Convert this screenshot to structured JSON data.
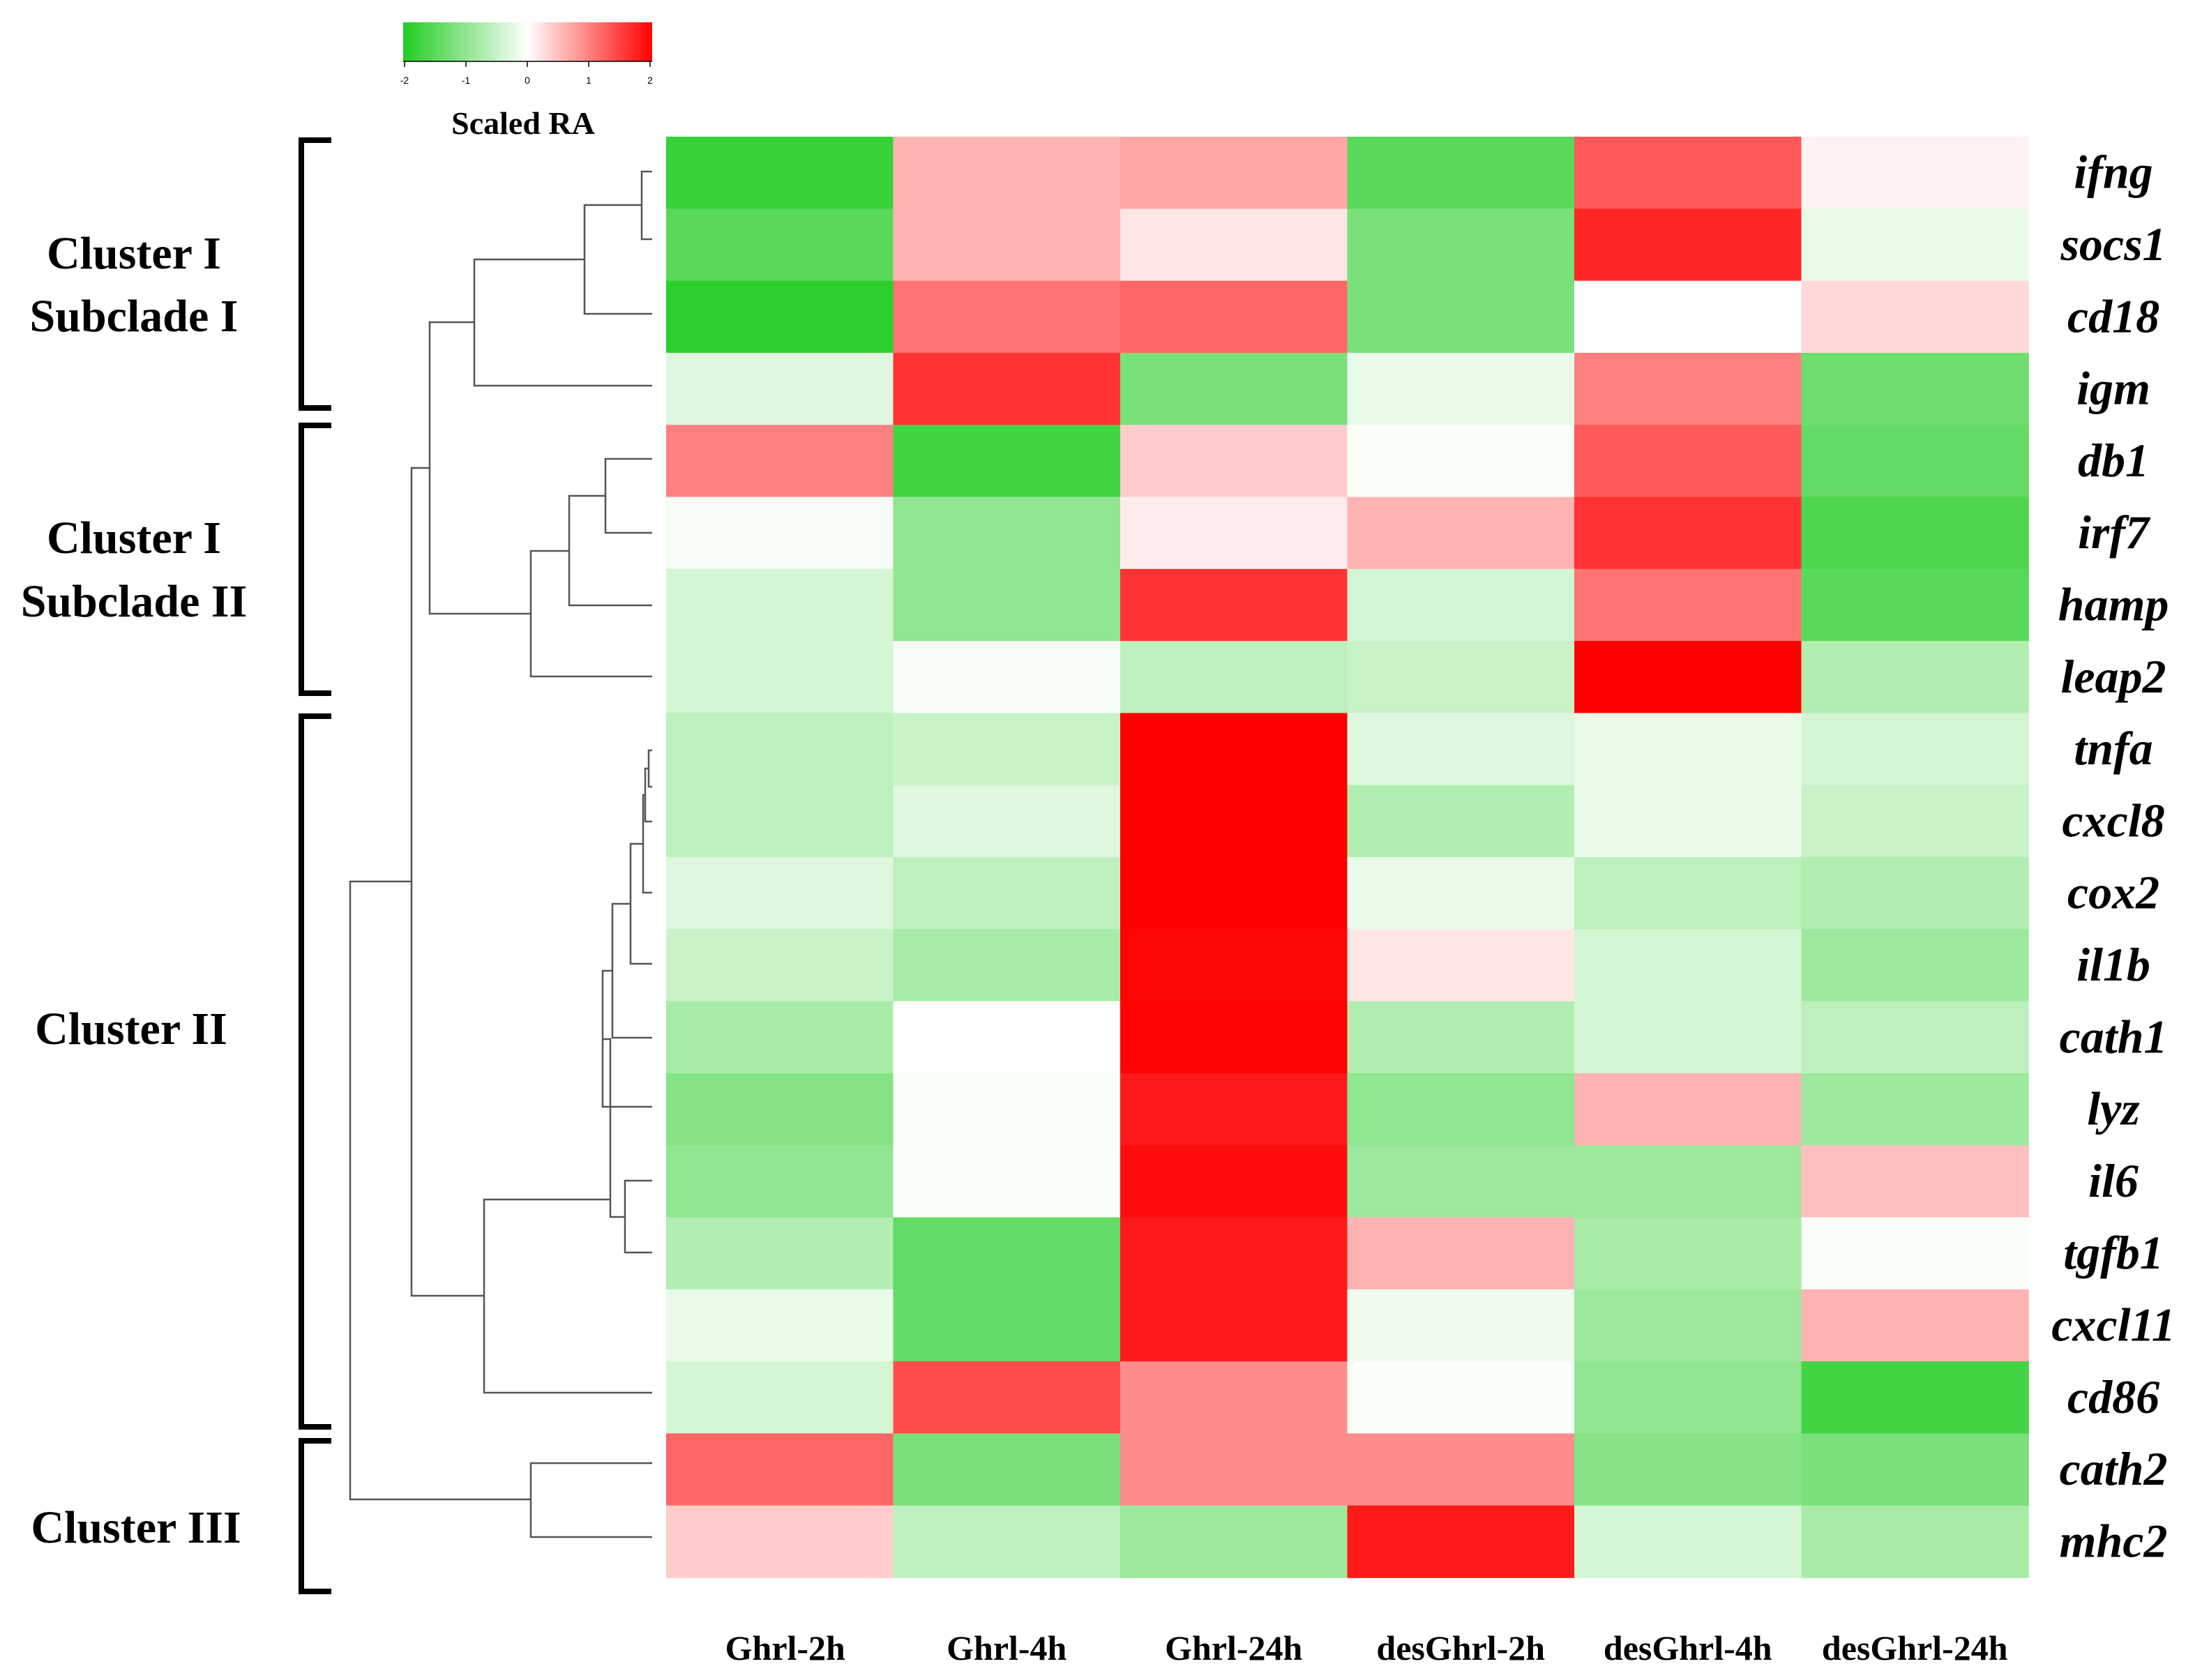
{
  "chart_data": {
    "type": "heatmap",
    "title": "",
    "columns": [
      "Ghrl-2h",
      "Ghrl-4h",
      "Ghrl-24h",
      "desGhrl-2h",
      "desGhrl-4h",
      "desGhrl-24h"
    ],
    "rows": [
      "ifng",
      "socs1",
      "cd18",
      "igm",
      "db1",
      "irf7",
      "hamp",
      "leap2",
      "tnfa",
      "cxcl8",
      "cox2",
      "il1b",
      "cath1",
      "lyz",
      "il6",
      "tgfb1",
      "cxcl11",
      "cd86",
      "cath2",
      "mhc2"
    ],
    "values": [
      [
        -1.8,
        0.6,
        0.7,
        -1.5,
        1.3,
        0.1
      ],
      [
        -1.5,
        0.6,
        0.2,
        -1.2,
        1.7,
        -0.2
      ],
      [
        -1.9,
        1.1,
        1.2,
        -1.2,
        0.0,
        0.3
      ],
      [
        -0.3,
        1.6,
        -1.2,
        -0.2,
        1.0,
        -1.3
      ],
      [
        1.0,
        -1.7,
        0.4,
        -0.05,
        1.3,
        -1.4
      ],
      [
        -0.1,
        -1.0,
        0.15,
        0.6,
        1.6,
        -1.6
      ],
      [
        -0.4,
        -1.0,
        1.6,
        -0.4,
        1.1,
        -1.5
      ],
      [
        -0.4,
        -0.1,
        -0.6,
        -0.5,
        2.0,
        -0.7
      ],
      [
        -0.6,
        -0.5,
        2.0,
        -0.3,
        -0.2,
        -0.4
      ],
      [
        -0.6,
        -0.3,
        2.0,
        -0.7,
        -0.2,
        -0.5
      ],
      [
        -0.3,
        -0.6,
        2.0,
        -0.2,
        -0.6,
        -0.7
      ],
      [
        -0.5,
        -0.8,
        1.95,
        0.2,
        -0.4,
        -0.9
      ],
      [
        -0.8,
        0.02,
        1.98,
        -0.7,
        -0.4,
        -0.6
      ],
      [
        -1.1,
        -0.05,
        1.8,
        -1.0,
        0.6,
        -0.9
      ],
      [
        -1.0,
        -0.05,
        1.9,
        -0.9,
        -0.9,
        0.5
      ],
      [
        -0.7,
        -1.4,
        1.8,
        0.6,
        -0.8,
        -0.05
      ],
      [
        -0.2,
        -1.4,
        1.8,
        -0.15,
        -0.9,
        0.6
      ],
      [
        -0.4,
        1.4,
        0.9,
        -0.05,
        -1.0,
        -1.7
      ],
      [
        1.2,
        -1.2,
        0.9,
        0.9,
        -1.1,
        -1.2
      ],
      [
        0.4,
        -0.6,
        -0.9,
        1.8,
        -0.4,
        -0.8
      ]
    ],
    "value_range": [
      -2,
      2
    ],
    "legend": {
      "title": "Scaled RA",
      "ticks": [
        "-2",
        "-1",
        "0",
        "1",
        "2"
      ],
      "low_color": "#22cc22",
      "mid_color": "#ffffff",
      "high_color": "#ff0000",
      "placement": "top-left"
    },
    "clusters": [
      {
        "label_lines": [
          "Cluster I",
          "Subclade I"
        ],
        "genes": [
          "ifng",
          "socs1",
          "cd18",
          "igm"
        ]
      },
      {
        "label_lines": [
          "Cluster I",
          "Subclade II"
        ],
        "genes": [
          "db1",
          "irf7",
          "hamp",
          "leap2"
        ]
      },
      {
        "label_lines": [
          "Cluster II"
        ],
        "genes": [
          "tnfa",
          "cxcl8",
          "cox2",
          "il1b",
          "cath1",
          "lyz",
          "il6",
          "tgfb1",
          "cxcl11",
          "cd86"
        ]
      },
      {
        "label_lines": [
          "Cluster III"
        ],
        "genes": [
          "cath2",
          "mhc2"
        ]
      }
    ],
    "dendrogram": "row-clustered; top split separates {cath2, mhc2} from the remaining genes"
  }
}
